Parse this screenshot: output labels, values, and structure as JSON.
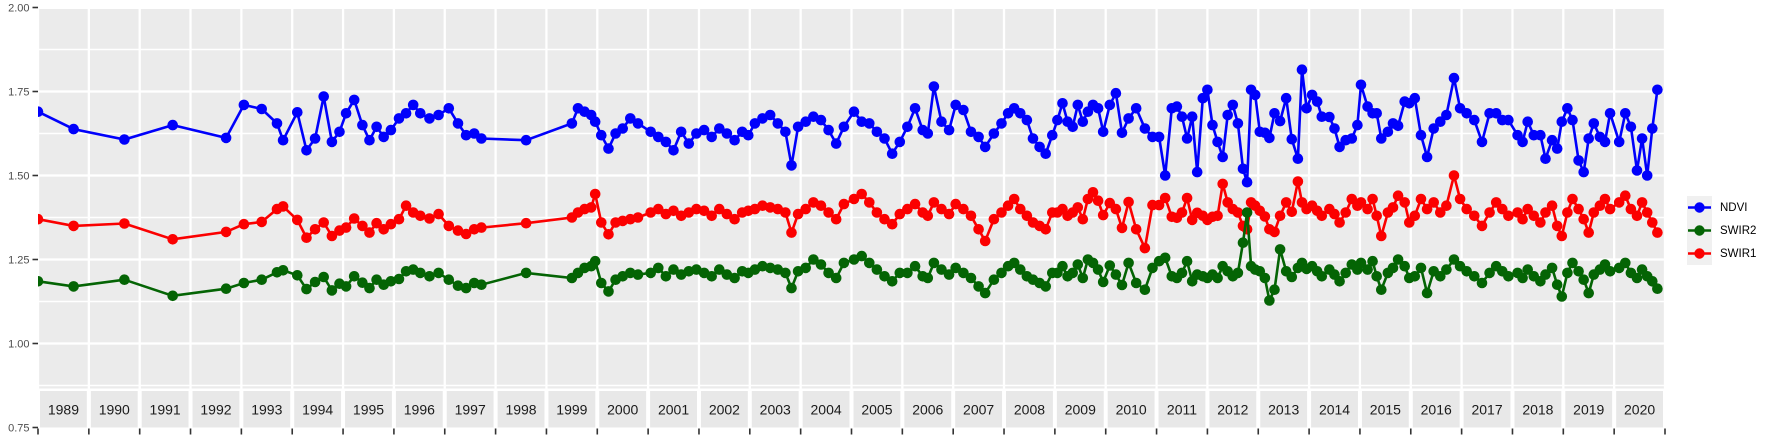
{
  "figure": {
    "kind": "time-series plot of spectral indices",
    "title": "",
    "x_axis_title": "",
    "y_axis_title": ""
  },
  "colors": {
    "background": "#FFFFFF",
    "panel": "#EBEBEB",
    "gridline": "#FFFFFF",
    "strip_box": "#E8E8E8",
    "strip_text": "#1A1A1A",
    "axis_text": "#4D4D4D",
    "tick_mark": "#333333",
    "legend_key_bg": "#F0F0F0",
    "ndvi": "#0000FB",
    "swir2": "#046404",
    "swir1": "#FB0000"
  },
  "y_axis": {
    "labels": [
      "2.00",
      "1.75",
      "1.50",
      "1.25",
      "1.00",
      "0.75"
    ],
    "values": [
      2.0,
      1.75,
      1.5,
      1.25,
      1.0,
      0.75
    ],
    "minor_gridlines": [
      1.875,
      1.625,
      1.375,
      1.125,
      0.875
    ]
  },
  "x_axis": {
    "years": [
      "1989",
      "1990",
      "1991",
      "1992",
      "1993",
      "1994",
      "1995",
      "1996",
      "1997",
      "1998",
      "1999",
      "2000",
      "2001",
      "2002",
      "2003",
      "2004",
      "2005",
      "2006",
      "2007",
      "2008",
      "2009",
      "2010",
      "2011",
      "2012",
      "2013",
      "2014",
      "2015",
      "2016",
      "2017",
      "2018",
      "2019",
      "2020"
    ]
  },
  "legend": {
    "entries": [
      {
        "label": "NDVI",
        "color": "#0000FB"
      },
      {
        "label": "SWIR2",
        "color": "#046404"
      },
      {
        "label": "SWIR1",
        "color": "#FB0000"
      }
    ]
  },
  "chart_data": {
    "type": "line",
    "title": "",
    "xlabel": "",
    "ylabel": "",
    "x_domain": [
      1989,
      2021
    ],
    "ylim_visible": [
      0.87,
      2.0
    ],
    "y_ticks": [
      0.75,
      1.0,
      1.25,
      1.5,
      1.75,
      2.0
    ],
    "grid": "major horizontal + minor horizontal (0.125 steps), vertical at year boundaries",
    "legend_position": "right",
    "columns": [
      "t",
      "NDVI",
      "SWIR1",
      "SWIR2"
    ],
    "draw_order": [
      "NDVI",
      "SWIR1",
      "SWIR2"
    ],
    "series_colors": {
      "NDVI": "#0000FB",
      "SWIR1": "#FB0000",
      "SWIR2": "#046404"
    },
    "observations": [
      [
        1989.0,
        1.69,
        1.37,
        1.185
      ],
      [
        1989.7,
        1.638,
        1.35,
        1.17
      ],
      [
        1990.7,
        1.607,
        1.357,
        1.19
      ],
      [
        1991.65,
        1.65,
        1.31,
        1.142
      ],
      [
        1992.7,
        1.612,
        1.332,
        1.163
      ],
      [
        1993.05,
        1.71,
        1.355,
        1.18
      ],
      [
        1993.4,
        1.698,
        1.362,
        1.19
      ],
      [
        1993.7,
        1.655,
        1.4,
        1.212
      ],
      [
        1993.82,
        1.605,
        1.408,
        1.218
      ],
      [
        1994.1,
        1.688,
        1.368,
        1.203
      ],
      [
        1994.28,
        1.575,
        1.315,
        1.162
      ],
      [
        1994.45,
        1.61,
        1.34,
        1.183
      ],
      [
        1994.62,
        1.735,
        1.36,
        1.198
      ],
      [
        1994.78,
        1.6,
        1.32,
        1.158
      ],
      [
        1994.93,
        1.63,
        1.336,
        1.178
      ],
      [
        1995.06,
        1.685,
        1.345,
        1.17
      ],
      [
        1995.22,
        1.725,
        1.372,
        1.2
      ],
      [
        1995.38,
        1.65,
        1.35,
        1.181
      ],
      [
        1995.52,
        1.605,
        1.33,
        1.165
      ],
      [
        1995.66,
        1.645,
        1.358,
        1.19
      ],
      [
        1995.8,
        1.615,
        1.34,
        1.175
      ],
      [
        1995.94,
        1.635,
        1.355,
        1.185
      ],
      [
        1996.1,
        1.67,
        1.37,
        1.192
      ],
      [
        1996.24,
        1.685,
        1.41,
        1.215
      ],
      [
        1996.38,
        1.71,
        1.39,
        1.22
      ],
      [
        1996.52,
        1.685,
        1.38,
        1.21
      ],
      [
        1996.7,
        1.67,
        1.372,
        1.2
      ],
      [
        1996.88,
        1.68,
        1.385,
        1.21
      ],
      [
        1997.08,
        1.7,
        1.35,
        1.19
      ],
      [
        1997.26,
        1.655,
        1.336,
        1.172
      ],
      [
        1997.42,
        1.62,
        1.326,
        1.165
      ],
      [
        1997.58,
        1.625,
        1.34,
        1.18
      ],
      [
        1997.72,
        1.61,
        1.345,
        1.175
      ],
      [
        1998.6,
        1.605,
        1.358,
        1.21
      ],
      [
        1999.5,
        1.655,
        1.375,
        1.195
      ],
      [
        1999.62,
        1.7,
        1.39,
        1.21
      ],
      [
        1999.75,
        1.69,
        1.4,
        1.225
      ],
      [
        1999.88,
        1.68,
        1.405,
        1.23
      ],
      [
        1999.96,
        1.66,
        1.445,
        1.245
      ],
      [
        2000.08,
        1.62,
        1.36,
        1.18
      ],
      [
        2000.22,
        1.58,
        1.325,
        1.155
      ],
      [
        2000.36,
        1.625,
        1.36,
        1.19
      ],
      [
        2000.5,
        1.64,
        1.365,
        1.2
      ],
      [
        2000.65,
        1.67,
        1.37,
        1.21
      ],
      [
        2000.8,
        1.655,
        1.375,
        1.205
      ],
      [
        2001.05,
        1.63,
        1.39,
        1.21
      ],
      [
        2001.2,
        1.615,
        1.4,
        1.225
      ],
      [
        2001.35,
        1.6,
        1.385,
        1.2
      ],
      [
        2001.5,
        1.575,
        1.395,
        1.22
      ],
      [
        2001.65,
        1.63,
        1.38,
        1.205
      ],
      [
        2001.8,
        1.595,
        1.39,
        1.215
      ],
      [
        2001.95,
        1.625,
        1.4,
        1.22
      ],
      [
        2002.1,
        1.635,
        1.395,
        1.21
      ],
      [
        2002.25,
        1.615,
        1.38,
        1.2
      ],
      [
        2002.4,
        1.64,
        1.4,
        1.22
      ],
      [
        2002.55,
        1.625,
        1.385,
        1.205
      ],
      [
        2002.7,
        1.605,
        1.37,
        1.195
      ],
      [
        2002.85,
        1.63,
        1.39,
        1.215
      ],
      [
        2002.97,
        1.62,
        1.395,
        1.21
      ],
      [
        2003.1,
        1.655,
        1.4,
        1.22
      ],
      [
        2003.25,
        1.67,
        1.41,
        1.23
      ],
      [
        2003.4,
        1.68,
        1.405,
        1.225
      ],
      [
        2003.55,
        1.655,
        1.4,
        1.22
      ],
      [
        2003.7,
        1.63,
        1.39,
        1.21
      ],
      [
        2003.82,
        1.53,
        1.33,
        1.165
      ],
      [
        2003.95,
        1.645,
        1.385,
        1.215
      ],
      [
        2004.1,
        1.66,
        1.4,
        1.225
      ],
      [
        2004.25,
        1.675,
        1.42,
        1.25
      ],
      [
        2004.4,
        1.665,
        1.41,
        1.235
      ],
      [
        2004.55,
        1.635,
        1.39,
        1.21
      ],
      [
        2004.7,
        1.595,
        1.37,
        1.195
      ],
      [
        2004.85,
        1.645,
        1.415,
        1.24
      ],
      [
        2005.05,
        1.69,
        1.43,
        1.25
      ],
      [
        2005.2,
        1.66,
        1.445,
        1.26
      ],
      [
        2005.35,
        1.655,
        1.42,
        1.24
      ],
      [
        2005.5,
        1.63,
        1.39,
        1.22
      ],
      [
        2005.65,
        1.61,
        1.37,
        1.2
      ],
      [
        2005.8,
        1.565,
        1.355,
        1.185
      ],
      [
        2005.95,
        1.6,
        1.385,
        1.21
      ],
      [
        2006.1,
        1.645,
        1.4,
        1.21
      ],
      [
        2006.25,
        1.7,
        1.415,
        1.23
      ],
      [
        2006.4,
        1.635,
        1.39,
        1.2
      ],
      [
        2006.5,
        1.625,
        1.38,
        1.195
      ],
      [
        2006.62,
        1.765,
        1.42,
        1.24
      ],
      [
        2006.77,
        1.66,
        1.4,
        1.22
      ],
      [
        2006.92,
        1.635,
        1.385,
        1.205
      ],
      [
        2007.05,
        1.71,
        1.415,
        1.225
      ],
      [
        2007.2,
        1.695,
        1.4,
        1.21
      ],
      [
        2007.35,
        1.63,
        1.38,
        1.195
      ],
      [
        2007.5,
        1.615,
        1.34,
        1.17
      ],
      [
        2007.63,
        1.585,
        1.305,
        1.15
      ],
      [
        2007.8,
        1.625,
        1.37,
        1.19
      ],
      [
        2007.95,
        1.655,
        1.39,
        1.21
      ],
      [
        2008.08,
        1.685,
        1.41,
        1.23
      ],
      [
        2008.2,
        1.7,
        1.43,
        1.24
      ],
      [
        2008.32,
        1.685,
        1.4,
        1.22
      ],
      [
        2008.45,
        1.665,
        1.38,
        1.2
      ],
      [
        2008.57,
        1.61,
        1.36,
        1.19
      ],
      [
        2008.7,
        1.585,
        1.35,
        1.18
      ],
      [
        2008.82,
        1.565,
        1.34,
        1.17
      ],
      [
        2008.95,
        1.62,
        1.39,
        1.21
      ],
      [
        2009.05,
        1.665,
        1.39,
        1.21
      ],
      [
        2009.15,
        1.715,
        1.4,
        1.23
      ],
      [
        2009.25,
        1.66,
        1.38,
        1.2
      ],
      [
        2009.35,
        1.645,
        1.39,
        1.21
      ],
      [
        2009.45,
        1.71,
        1.405,
        1.235
      ],
      [
        2009.55,
        1.66,
        1.37,
        1.195
      ],
      [
        2009.65,
        1.69,
        1.43,
        1.25
      ],
      [
        2009.75,
        1.71,
        1.45,
        1.24
      ],
      [
        2009.85,
        1.7,
        1.425,
        1.22
      ],
      [
        2009.95,
        1.63,
        1.382,
        1.183
      ],
      [
        2010.08,
        1.71,
        1.418,
        1.232
      ],
      [
        2010.2,
        1.745,
        1.4,
        1.205
      ],
      [
        2010.32,
        1.627,
        1.344,
        1.174
      ],
      [
        2010.45,
        1.67,
        1.421,
        1.24
      ],
      [
        2010.6,
        1.7,
        1.34,
        1.18
      ],
      [
        2010.77,
        1.64,
        1.284,
        1.16
      ],
      [
        2010.92,
        1.615,
        1.412,
        1.225
      ],
      [
        2011.05,
        1.615,
        1.412,
        1.245
      ],
      [
        2011.17,
        1.5,
        1.433,
        1.255
      ],
      [
        2011.3,
        1.7,
        1.377,
        1.2
      ],
      [
        2011.4,
        1.705,
        1.374,
        1.195
      ],
      [
        2011.5,
        1.675,
        1.39,
        1.21
      ],
      [
        2011.6,
        1.61,
        1.433,
        1.245
      ],
      [
        2011.7,
        1.675,
        1.368,
        1.185
      ],
      [
        2011.8,
        1.51,
        1.389,
        1.205
      ],
      [
        2011.91,
        1.73,
        1.38,
        1.2
      ],
      [
        2012.0,
        1.755,
        1.368,
        1.195
      ],
      [
        2012.1,
        1.65,
        1.377,
        1.205
      ],
      [
        2012.2,
        1.6,
        1.38,
        1.195
      ],
      [
        2012.3,
        1.555,
        1.475,
        1.23
      ],
      [
        2012.4,
        1.68,
        1.42,
        1.215
      ],
      [
        2012.5,
        1.71,
        1.4,
        1.2
      ],
      [
        2012.6,
        1.655,
        1.39,
        1.21
      ],
      [
        2012.7,
        1.52,
        1.35,
        1.3
      ],
      [
        2012.78,
        1.48,
        1.34,
        1.39
      ],
      [
        2012.86,
        1.755,
        1.42,
        1.23
      ],
      [
        2012.94,
        1.74,
        1.41,
        1.22
      ],
      [
        2013.03,
        1.63,
        1.395,
        1.215
      ],
      [
        2013.13,
        1.627,
        1.378,
        1.195
      ],
      [
        2013.22,
        1.612,
        1.34,
        1.128
      ],
      [
        2013.32,
        1.685,
        1.332,
        1.16
      ],
      [
        2013.43,
        1.662,
        1.38,
        1.28
      ],
      [
        2013.55,
        1.73,
        1.42,
        1.215
      ],
      [
        2013.66,
        1.608,
        1.392,
        1.198
      ],
      [
        2013.78,
        1.55,
        1.482,
        1.225
      ],
      [
        2013.86,
        1.815,
        1.42,
        1.24
      ],
      [
        2013.95,
        1.7,
        1.4,
        1.222
      ],
      [
        2014.06,
        1.74,
        1.41,
        1.23
      ],
      [
        2014.16,
        1.72,
        1.395,
        1.215
      ],
      [
        2014.25,
        1.675,
        1.38,
        1.2
      ],
      [
        2014.4,
        1.674,
        1.4,
        1.22
      ],
      [
        2014.5,
        1.64,
        1.385,
        1.205
      ],
      [
        2014.6,
        1.585,
        1.36,
        1.185
      ],
      [
        2014.72,
        1.605,
        1.39,
        1.21
      ],
      [
        2014.84,
        1.61,
        1.43,
        1.235
      ],
      [
        2014.95,
        1.65,
        1.41,
        1.22
      ],
      [
        2015.02,
        1.77,
        1.42,
        1.24
      ],
      [
        2015.15,
        1.705,
        1.4,
        1.22
      ],
      [
        2015.25,
        1.685,
        1.43,
        1.245
      ],
      [
        2015.33,
        1.685,
        1.38,
        1.2
      ],
      [
        2015.42,
        1.61,
        1.32,
        1.16
      ],
      [
        2015.55,
        1.63,
        1.39,
        1.21
      ],
      [
        2015.65,
        1.655,
        1.405,
        1.225
      ],
      [
        2015.75,
        1.648,
        1.44,
        1.25
      ],
      [
        2015.88,
        1.72,
        1.42,
        1.23
      ],
      [
        2015.97,
        1.715,
        1.36,
        1.195
      ],
      [
        2016.08,
        1.73,
        1.38,
        1.2
      ],
      [
        2016.2,
        1.62,
        1.43,
        1.225
      ],
      [
        2016.32,
        1.555,
        1.4,
        1.15
      ],
      [
        2016.45,
        1.64,
        1.42,
        1.215
      ],
      [
        2016.58,
        1.66,
        1.39,
        1.2
      ],
      [
        2016.7,
        1.68,
        1.41,
        1.22
      ],
      [
        2016.85,
        1.79,
        1.5,
        1.25
      ],
      [
        2016.97,
        1.7,
        1.43,
        1.23
      ],
      [
        2017.1,
        1.685,
        1.4,
        1.215
      ],
      [
        2017.25,
        1.665,
        1.38,
        1.2
      ],
      [
        2017.4,
        1.6,
        1.35,
        1.18
      ],
      [
        2017.55,
        1.685,
        1.39,
        1.21
      ],
      [
        2017.68,
        1.685,
        1.42,
        1.23
      ],
      [
        2017.8,
        1.665,
        1.4,
        1.215
      ],
      [
        2017.92,
        1.665,
        1.38,
        1.2
      ],
      [
        2018.1,
        1.62,
        1.39,
        1.21
      ],
      [
        2018.2,
        1.6,
        1.37,
        1.195
      ],
      [
        2018.3,
        1.66,
        1.4,
        1.22
      ],
      [
        2018.42,
        1.62,
        1.38,
        1.2
      ],
      [
        2018.55,
        1.62,
        1.36,
        1.185
      ],
      [
        2018.65,
        1.55,
        1.39,
        1.205
      ],
      [
        2018.78,
        1.605,
        1.41,
        1.225
      ],
      [
        2018.88,
        1.58,
        1.35,
        1.175
      ],
      [
        2018.97,
        1.66,
        1.32,
        1.14
      ],
      [
        2019.08,
        1.7,
        1.39,
        1.21
      ],
      [
        2019.18,
        1.665,
        1.43,
        1.24
      ],
      [
        2019.3,
        1.545,
        1.4,
        1.215
      ],
      [
        2019.4,
        1.51,
        1.37,
        1.19
      ],
      [
        2019.5,
        1.61,
        1.33,
        1.15
      ],
      [
        2019.6,
        1.655,
        1.39,
        1.205
      ],
      [
        2019.72,
        1.615,
        1.41,
        1.22
      ],
      [
        2019.82,
        1.6,
        1.43,
        1.235
      ],
      [
        2019.92,
        1.685,
        1.4,
        1.215
      ],
      [
        2020.1,
        1.6,
        1.42,
        1.225
      ],
      [
        2020.22,
        1.685,
        1.44,
        1.24
      ],
      [
        2020.33,
        1.645,
        1.4,
        1.21
      ],
      [
        2020.45,
        1.515,
        1.38,
        1.195
      ],
      [
        2020.55,
        1.61,
        1.42,
        1.22
      ],
      [
        2020.65,
        1.5,
        1.39,
        1.2
      ],
      [
        2020.75,
        1.64,
        1.36,
        1.185
      ],
      [
        2020.85,
        1.755,
        1.33,
        1.163
      ]
    ]
  }
}
